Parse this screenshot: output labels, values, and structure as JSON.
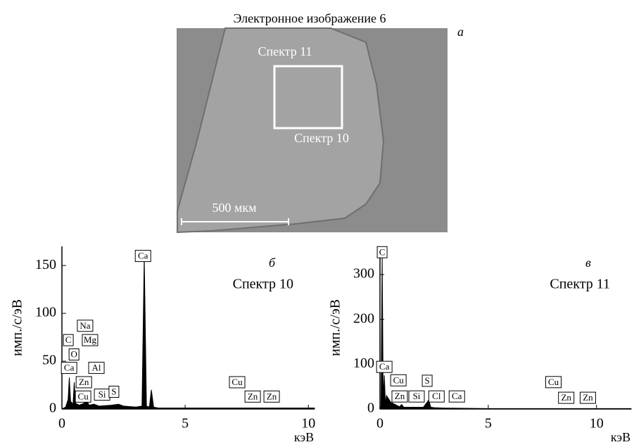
{
  "image": {
    "title": "Электронное изображение 6",
    "panel": "а",
    "labels": [
      "Спектр 11",
      "Спектр 10"
    ],
    "scale_bar": "500 мкм"
  },
  "chart_data": [
    {
      "type": "area",
      "panel": "б",
      "subtitle": "Спектр 10",
      "ylabel": "имп./с/эВ",
      "xlabel": "кэВ",
      "color": "#000000",
      "x": [
        0,
        0.15,
        0.25,
        0.3,
        0.35,
        0.45,
        0.5,
        0.55,
        0.7,
        0.9,
        1.0,
        1.1,
        1.3,
        1.5,
        2.0,
        2.3,
        2.5,
        3.0,
        3.25,
        3.34,
        3.43,
        3.55,
        3.63,
        3.72,
        3.9,
        5,
        7,
        8,
        9,
        10.25
      ],
      "values": [
        0,
        2,
        10,
        33,
        8,
        5,
        28,
        6,
        4,
        6,
        10,
        4,
        5,
        3,
        4,
        5,
        3,
        2,
        3,
        160,
        3,
        2,
        20,
        2,
        1,
        1,
        1,
        1,
        1,
        1
      ],
      "xlim": [
        0,
        10.25
      ],
      "ylim": [
        0,
        170
      ],
      "xticks": [
        0,
        5,
        10
      ],
      "yticks": [
        0,
        50,
        100,
        150
      ],
      "annotations": [
        {
          "text": "Ca",
          "x": 3.29,
          "y": 160
        },
        {
          "text": "Na",
          "x": 0.94,
          "y": 87
        },
        {
          "text": "Mg",
          "x": 1.14,
          "y": 72
        },
        {
          "text": "C",
          "x": 0.26,
          "y": 72
        },
        {
          "text": "O",
          "x": 0.49,
          "y": 57
        },
        {
          "text": "Ca",
          "x": 0.29,
          "y": 43
        },
        {
          "text": "Al",
          "x": 1.4,
          "y": 43
        },
        {
          "text": "Zn",
          "x": 0.89,
          "y": 28
        },
        {
          "text": "Cu",
          "x": 0.86,
          "y": 13
        },
        {
          "text": "Si",
          "x": 1.63,
          "y": 15
        },
        {
          "text": "S",
          "x": 2.11,
          "y": 18
        },
        {
          "text": "Cu",
          "x": 7.11,
          "y": 28
        },
        {
          "text": "Zn",
          "x": 7.74,
          "y": 13
        },
        {
          "text": "Zn",
          "x": 8.51,
          "y": 13
        }
      ]
    },
    {
      "type": "area",
      "panel": "в",
      "subtitle": "Спектр 11",
      "ylabel": "имп./с/эВ",
      "xlabel": "кэВ",
      "color": "#000000",
      "x": [
        0,
        0.05,
        0.1,
        0.15,
        0.2,
        0.25,
        0.3,
        0.5,
        0.9,
        1.0,
        1.1,
        2.0,
        2.25,
        2.35,
        2.5,
        3.0,
        5,
        8,
        11.6
      ],
      "values": [
        0,
        5,
        347,
        20,
        75,
        10,
        30,
        15,
        5,
        10,
        4,
        4,
        20,
        4,
        3,
        2,
        1,
        1,
        1
      ],
      "xlim": [
        0,
        11.6
      ],
      "ylim": [
        0,
        363
      ],
      "xticks": [
        0,
        5,
        10
      ],
      "yticks": [
        0,
        100,
        200,
        300
      ],
      "annotations": [
        {
          "text": "C",
          "x": 0.1,
          "y": 350
        },
        {
          "text": "Ca",
          "x": 0.2,
          "y": 94
        },
        {
          "text": "Cu",
          "x": 0.85,
          "y": 64
        },
        {
          "text": "Zn",
          "x": 0.91,
          "y": 28
        },
        {
          "text": "Si",
          "x": 1.69,
          "y": 28
        },
        {
          "text": "S",
          "x": 2.18,
          "y": 63
        },
        {
          "text": "Cl",
          "x": 2.61,
          "y": 28
        },
        {
          "text": "Ca",
          "x": 3.55,
          "y": 28
        },
        {
          "text": "Cu",
          "x": 8.01,
          "y": 60
        },
        {
          "text": "Zn",
          "x": 8.6,
          "y": 25
        },
        {
          "text": "Zn",
          "x": 9.6,
          "y": 25
        }
      ]
    }
  ]
}
